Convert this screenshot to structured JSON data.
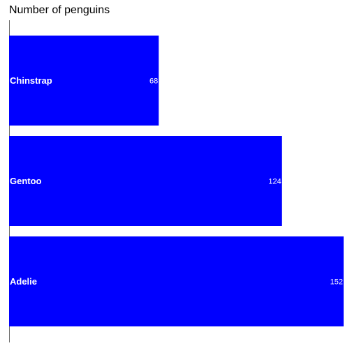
{
  "chart_data": {
    "type": "bar",
    "orientation": "horizontal",
    "title": "Number of penguins",
    "xlabel": "",
    "ylabel": "",
    "categories": [
      "Chinstrap",
      "Gentoo",
      "Adelie"
    ],
    "values": [
      68,
      124,
      152
    ],
    "xlim": [
      0,
      152
    ],
    "grid": false,
    "legend": "none",
    "bar_color": "#0000ff",
    "label_color": "#ffffff"
  }
}
